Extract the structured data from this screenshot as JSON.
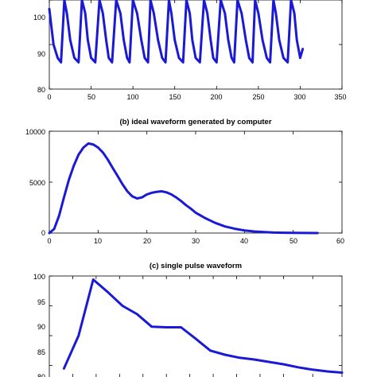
{
  "chart_data": [
    {
      "type": "line",
      "title": "",
      "xlim": [
        0,
        350
      ],
      "ylim": [
        80,
        100
      ],
      "xticks": [
        0,
        50,
        100,
        150,
        200,
        250,
        300,
        350
      ],
      "yticks": [
        80,
        90,
        100
      ],
      "series": [
        {
          "x": [
            0,
            5,
            10,
            14,
            18,
            21,
            25,
            30,
            35,
            39,
            43,
            46,
            50,
            55,
            60,
            64,
            68,
            71,
            75,
            80,
            85,
            89,
            93,
            96,
            100,
            105,
            110,
            114,
            118,
            121,
            125,
            130,
            135,
            139,
            143,
            146,
            150,
            155,
            160,
            164,
            168,
            171,
            175,
            180,
            185,
            189,
            193,
            196,
            200,
            205,
            210,
            214,
            218,
            221,
            225,
            230,
            235,
            239,
            243,
            246,
            250,
            255,
            260,
            264,
            268,
            271,
            275,
            280,
            285,
            289,
            293,
            296,
            300,
            303
          ],
          "y": [
            98,
            90,
            87,
            86,
            100,
            97,
            91,
            87,
            86,
            100,
            97,
            91,
            87,
            86,
            100,
            97,
            91,
            87,
            86,
            100,
            97,
            91,
            87,
            86,
            100,
            97,
            91,
            87,
            86,
            100,
            97,
            91,
            87,
            86,
            100,
            97,
            91,
            87,
            86,
            100,
            97,
            91,
            87,
            86,
            100,
            97,
            91,
            87,
            86,
            100,
            97,
            91,
            87,
            86,
            100,
            97,
            91,
            87,
            86,
            100,
            97,
            91,
            87,
            86,
            100,
            97,
            91,
            87,
            86,
            100,
            97,
            91,
            87,
            89
          ]
        }
      ]
    },
    {
      "type": "line",
      "title": "(b) ideal waveform generated by computer",
      "xlim": [
        0,
        60
      ],
      "ylim": [
        0,
        10000
      ],
      "xticks": [
        0,
        10,
        20,
        30,
        40,
        50,
        60
      ],
      "yticks": [
        0,
        5000,
        10000
      ],
      "series": [
        {
          "x": [
            0,
            1,
            2,
            3,
            4,
            5,
            6,
            7,
            8,
            9,
            10,
            11,
            12,
            13,
            14,
            15,
            16,
            17,
            18,
            19,
            20,
            21,
            22,
            23,
            24,
            25,
            26,
            27,
            28,
            29,
            30,
            32,
            34,
            36,
            38,
            40,
            42,
            44,
            46,
            48,
            50,
            52,
            55
          ],
          "y": [
            0,
            400,
            1700,
            3500,
            5200,
            6600,
            7700,
            8400,
            8800,
            8700,
            8400,
            7900,
            7200,
            6400,
            5600,
            4800,
            4100,
            3600,
            3400,
            3500,
            3800,
            3950,
            4050,
            4100,
            4000,
            3800,
            3500,
            3150,
            2750,
            2400,
            2000,
            1450,
            1000,
            650,
            420,
            260,
            160,
            90,
            50,
            30,
            15,
            8,
            0
          ]
        }
      ]
    },
    {
      "type": "line",
      "title": "(c) single pulse waveform",
      "xlim": [
        0,
        100
      ],
      "ylim": [
        80,
        100
      ],
      "xticks": [],
      "yticks": [
        80,
        85,
        90,
        95,
        100
      ],
      "series": [
        {
          "x": [
            5,
            10,
            15,
            20,
            25,
            30,
            35,
            40,
            45,
            50,
            55,
            60,
            65,
            70,
            75,
            80,
            85,
            90,
            95,
            100
          ],
          "y": [
            84.5,
            90,
            99.4,
            97.3,
            95,
            93.6,
            91.5,
            91.4,
            91.4,
            89.5,
            87.5,
            86.8,
            86.3,
            86,
            85.6,
            85.2,
            84.7,
            84.3,
            84,
            83.8
          ]
        }
      ]
    }
  ],
  "tick_labels": {
    "a_y": [
      "100",
      "90",
      "80"
    ],
    "a_x": [
      "0",
      "50",
      "100",
      "150",
      "200",
      "250",
      "300",
      "350"
    ],
    "b_y": [
      "10000",
      "5000",
      "0"
    ],
    "b_x": [
      "0",
      "10",
      "20",
      "30",
      "40",
      "50",
      "60"
    ],
    "c_y": [
      "100",
      "95",
      "90",
      "85",
      "80"
    ]
  },
  "captions": {
    "b": "(b) ideal waveform generated by computer",
    "c": "(c) single pulse waveform"
  }
}
